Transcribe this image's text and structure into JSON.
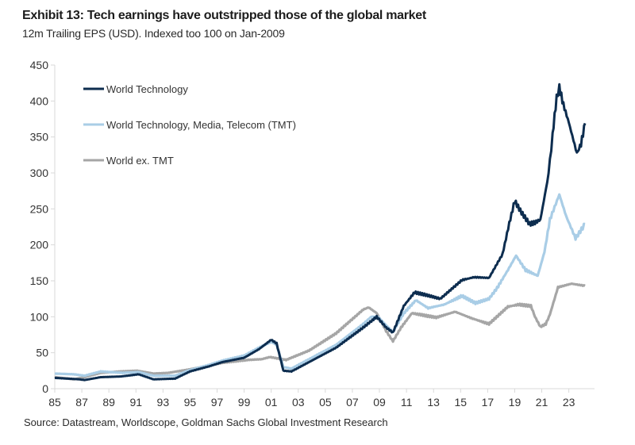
{
  "chart_data": {
    "type": "line",
    "title": "Exhibit 13: Tech earnings have outstripped those of the global market",
    "subtitle": "12m Trailing EPS (USD). Indexed too 100 on Jan-2009",
    "source": "Source: Datastream, Worldscope, Goldman Sachs Global Investment Research",
    "xlabel": "",
    "ylabel": "",
    "xlim": [
      1985,
      2024.9
    ],
    "ylim": [
      0,
      450
    ],
    "yticks": [
      0,
      50,
      100,
      150,
      200,
      250,
      300,
      350,
      400,
      450
    ],
    "xticks": [
      1985,
      1987,
      1989,
      1991,
      1993,
      1995,
      1997,
      1999,
      2001,
      2003,
      2005,
      2007,
      2009,
      2011,
      2013,
      2015,
      2017,
      2019,
      2021,
      2023
    ],
    "xtick_labels": [
      "85",
      "87",
      "89",
      "91",
      "93",
      "95",
      "97",
      "99",
      "01",
      "03",
      "05",
      "07",
      "09",
      "11",
      "13",
      "15",
      "17",
      "19",
      "21",
      "23"
    ],
    "grid": false,
    "legend_position": "top-left",
    "series": [
      {
        "name": "World Technology",
        "color": "#0d2d4f",
        "points": [
          [
            1985.0,
            15
          ],
          [
            1986.0,
            14
          ],
          [
            1986.8,
            13
          ],
          [
            1987.2,
            12
          ],
          [
            1988.4,
            16
          ],
          [
            1989.9,
            17
          ],
          [
            1991.2,
            20
          ],
          [
            1992.3,
            13
          ],
          [
            1993.9,
            14
          ],
          [
            1995.0,
            24
          ],
          [
            1996.4,
            31
          ],
          [
            1997.4,
            37
          ],
          [
            1999.0,
            43
          ],
          [
            2000.1,
            55
          ],
          [
            2001.0,
            68
          ],
          [
            2001.4,
            63
          ],
          [
            2001.9,
            25
          ],
          [
            2002.5,
            24
          ],
          [
            2003.8,
            37
          ],
          [
            2005.8,
            57
          ],
          [
            2007.8,
            85
          ],
          [
            2008.4,
            94
          ],
          [
            2008.8,
            100
          ],
          [
            2009.5,
            85
          ],
          [
            2010.0,
            78
          ],
          [
            2010.8,
            115
          ],
          [
            2011.6,
            134
          ],
          [
            2012.5,
            130
          ],
          [
            2013.5,
            125
          ],
          [
            2015.1,
            151
          ],
          [
            2016.0,
            155
          ],
          [
            2017.1,
            154
          ],
          [
            2018.1,
            187
          ],
          [
            2018.6,
            230
          ],
          [
            2019.0,
            261
          ],
          [
            2019.5,
            245
          ],
          [
            2020.1,
            229
          ],
          [
            2020.5,
            231
          ],
          [
            2020.9,
            235
          ],
          [
            2021.4,
            287
          ],
          [
            2021.6,
            316
          ],
          [
            2021.8,
            353
          ],
          [
            2022.1,
            405
          ],
          [
            2022.3,
            419
          ],
          [
            2022.6,
            395
          ],
          [
            2023.0,
            370
          ],
          [
            2023.6,
            327
          ],
          [
            2023.9,
            340
          ],
          [
            2024.2,
            369
          ]
        ]
      },
      {
        "name": "World Technology, Media, Telecom (TMT)",
        "color": "#a9cde6",
        "points": [
          [
            1985.0,
            21
          ],
          [
            1986.4,
            20
          ],
          [
            1987.2,
            18
          ],
          [
            1988.4,
            24
          ],
          [
            1990.0,
            22
          ],
          [
            1991.2,
            23
          ],
          [
            1992.3,
            18
          ],
          [
            1993.9,
            18
          ],
          [
            1995.0,
            26
          ],
          [
            1996.4,
            33
          ],
          [
            1997.4,
            39
          ],
          [
            1999.0,
            46
          ],
          [
            2000.1,
            57
          ],
          [
            2001.0,
            65
          ],
          [
            2001.4,
            61
          ],
          [
            2001.9,
            30
          ],
          [
            2002.5,
            28
          ],
          [
            2003.8,
            41
          ],
          [
            2005.8,
            61
          ],
          [
            2007.8,
            90
          ],
          [
            2008.4,
            100
          ],
          [
            2008.9,
            100
          ],
          [
            2009.5,
            88
          ],
          [
            2010.0,
            79
          ],
          [
            2010.8,
            105
          ],
          [
            2011.7,
            123
          ],
          [
            2012.6,
            112
          ],
          [
            2013.8,
            117
          ],
          [
            2015.1,
            129
          ],
          [
            2016.1,
            119
          ],
          [
            2017.1,
            125
          ],
          [
            2017.7,
            140
          ],
          [
            2018.5,
            165
          ],
          [
            2019.1,
            185
          ],
          [
            2019.8,
            165
          ],
          [
            2020.7,
            157
          ],
          [
            2021.2,
            190
          ],
          [
            2021.6,
            235
          ],
          [
            2022.3,
            270
          ],
          [
            2022.8,
            240
          ],
          [
            2023.5,
            209
          ],
          [
            2024.2,
            229
          ]
        ]
      },
      {
        "name": "World ex. TMT",
        "color": "#a6a6a6",
        "points": [
          [
            1985.0,
            16
          ],
          [
            1986.4,
            13
          ],
          [
            1987.2,
            16
          ],
          [
            1988.4,
            22
          ],
          [
            1989.9,
            24
          ],
          [
            1991.1,
            25
          ],
          [
            1992.3,
            21
          ],
          [
            1993.4,
            22
          ],
          [
            1995.0,
            27
          ],
          [
            1996.4,
            32
          ],
          [
            1997.4,
            36
          ],
          [
            1999.3,
            40
          ],
          [
            2000.3,
            41
          ],
          [
            2000.9,
            44
          ],
          [
            2002.1,
            40
          ],
          [
            2003.8,
            53
          ],
          [
            2005.8,
            77
          ],
          [
            2007.8,
            110
          ],
          [
            2008.2,
            113
          ],
          [
            2008.8,
            105
          ],
          [
            2009.5,
            80
          ],
          [
            2010.0,
            66
          ],
          [
            2010.6,
            85
          ],
          [
            2011.4,
            105
          ],
          [
            2013.2,
            99
          ],
          [
            2014.6,
            107
          ],
          [
            2015.8,
            98
          ],
          [
            2017.1,
            90
          ],
          [
            2018.5,
            114
          ],
          [
            2019.3,
            117
          ],
          [
            2020.2,
            115
          ],
          [
            2020.5,
            100
          ],
          [
            2020.9,
            86
          ],
          [
            2021.3,
            90
          ],
          [
            2021.6,
            103
          ],
          [
            2022.2,
            141
          ],
          [
            2023.2,
            146
          ],
          [
            2024.2,
            143
          ]
        ]
      }
    ]
  }
}
